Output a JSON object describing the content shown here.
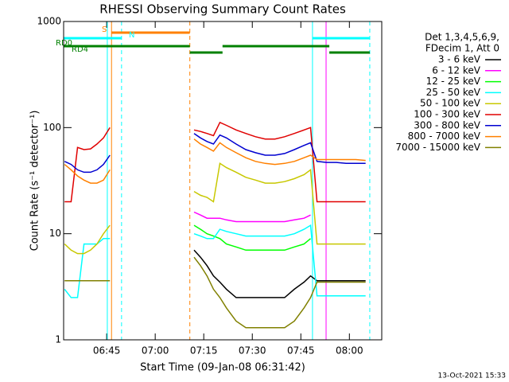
{
  "chart_data": {
    "type": "line",
    "title": "RHESSI Observing Summary Count Rates",
    "x_label": "Start Time (09-Jan-08 06:31:42)",
    "y_label": "Count Rate (s⁻¹ detector⁻¹)",
    "footnote": "13-Oct-2021 15:33",
    "legend_header": [
      "Det 1,3,4,5,6,9,",
      "FDecim 1, Att 0"
    ],
    "log_y": true,
    "xlim": [
      31.7,
      130
    ],
    "ylim": [
      1,
      1000
    ],
    "xticks": [
      {
        "value": 45,
        "label": "06:45"
      },
      {
        "value": 60,
        "label": "07:00"
      },
      {
        "value": 75,
        "label": "07:15"
      },
      {
        "value": 90,
        "label": "07:30"
      },
      {
        "value": 105,
        "label": "07:45"
      },
      {
        "value": 120,
        "label": "08:00"
      }
    ],
    "yticks": [
      1,
      10,
      100,
      1000
    ],
    "x": [
      32,
      34,
      36,
      38,
      40,
      42,
      44,
      46,
      58,
      72,
      74,
      76,
      78,
      80,
      82,
      85,
      88,
      91,
      94,
      97,
      100,
      103,
      106,
      108,
      110,
      113,
      116,
      119,
      122,
      125
    ],
    "series": [
      {
        "name": "3 - 6 keV",
        "color": "#000000",
        "values": [
          null,
          null,
          null,
          null,
          null,
          null,
          null,
          null,
          null,
          7,
          6,
          5,
          4,
          3.5,
          3,
          2.5,
          2.5,
          2.5,
          2.5,
          2.5,
          2.5,
          3,
          3.5,
          4,
          3.6,
          3.6,
          3.6,
          3.6,
          3.6,
          3.6
        ]
      },
      {
        "name": "6 - 12 keV",
        "color": "#ff00ff",
        "values": [
          null,
          null,
          null,
          null,
          null,
          null,
          null,
          null,
          null,
          16,
          15,
          14,
          14,
          14,
          13.5,
          13,
          13,
          13,
          13,
          13,
          13,
          13.5,
          14,
          15,
          null,
          null,
          null,
          null,
          null,
          null
        ]
      },
      {
        "name": "12 - 25 keV",
        "color": "#00ff00",
        "values": [
          null,
          null,
          null,
          null,
          null,
          null,
          null,
          null,
          null,
          12,
          11,
          10,
          9.5,
          9,
          8,
          7.5,
          7,
          7,
          7,
          7,
          7,
          7.5,
          8,
          9,
          null,
          null,
          null,
          null,
          null,
          null
        ]
      },
      {
        "name": "25 - 50 keV",
        "color": "#00ffff",
        "values": [
          3,
          2.5,
          2.5,
          8,
          8,
          8,
          9,
          9,
          null,
          10,
          9.5,
          9,
          9,
          11,
          10.5,
          10,
          9.5,
          9.5,
          9.5,
          9.5,
          9.5,
          10,
          11,
          12,
          2.6,
          2.6,
          2.6,
          2.6,
          2.6,
          2.6
        ]
      },
      {
        "name": "50 - 100 keV",
        "color": "#c8c800",
        "values": [
          8,
          7,
          6.5,
          6.5,
          7,
          8,
          10,
          12,
          null,
          25,
          23,
          22,
          20,
          46,
          42,
          38,
          34,
          32,
          30,
          30,
          31,
          33,
          36,
          40,
          8,
          8,
          8,
          8,
          8,
          8
        ]
      },
      {
        "name": "100 - 300 keV",
        "color": "#e00000",
        "values": [
          20,
          20,
          65,
          62,
          63,
          70,
          80,
          100,
          null,
          95,
          92,
          88,
          84,
          112,
          105,
          95,
          88,
          82,
          78,
          78,
          82,
          88,
          95,
          100,
          20,
          20,
          20,
          20,
          20,
          20
        ]
      },
      {
        "name": "300 - 800 keV",
        "color": "#0000d0",
        "values": [
          48,
          45,
          40,
          38,
          38,
          40,
          45,
          55,
          null,
          88,
          80,
          74,
          70,
          85,
          80,
          70,
          62,
          58,
          55,
          55,
          57,
          62,
          68,
          72,
          48,
          47,
          47,
          46,
          46,
          46
        ]
      },
      {
        "name": "800 - 7000 keV",
        "color": "#ff8000",
        "values": [
          45,
          40,
          35,
          32,
          30,
          30,
          32,
          40,
          null,
          78,
          70,
          65,
          60,
          72,
          65,
          58,
          52,
          48,
          46,
          45,
          46,
          48,
          52,
          55,
          50,
          50,
          50,
          50,
          50,
          49
        ]
      },
      {
        "name": "7000 - 15000 keV",
        "color": "#808000",
        "values": [
          3.6,
          3.6,
          3.6,
          3.6,
          3.6,
          3.6,
          3.6,
          3.6,
          null,
          6,
          5,
          4,
          3,
          2.5,
          2,
          1.5,
          1.3,
          1.3,
          1.3,
          1.3,
          1.3,
          1.5,
          2,
          2.5,
          3.5,
          3.5,
          3.5,
          3.5,
          3.5,
          3.5
        ]
      }
    ],
    "flags": [
      {
        "name": "S",
        "color": "#ff8000",
        "segments": [
          [
            46.5,
            70.7
          ]
        ]
      },
      {
        "name": "N",
        "color": "#00ffff",
        "segments": [
          [
            31.7,
            49.6
          ],
          [
            108.6,
            126.3
          ]
        ]
      },
      {
        "name": "RD0",
        "color": "#008000",
        "segments": [
          [
            31.7,
            70.7
          ],
          [
            80.8,
            113.8
          ]
        ]
      },
      {
        "name": "RD4",
        "color": "#008000",
        "segments": [
          [
            70.7,
            80.8
          ],
          [
            113.8,
            126.3
          ]
        ]
      }
    ],
    "markers": [
      {
        "x": 45.2,
        "color": "#00ffff",
        "dash": false
      },
      {
        "x": 46.5,
        "color": "#ff8000",
        "dash": false
      },
      {
        "x": 49.6,
        "color": "#00ffff",
        "dash": true
      },
      {
        "x": 70.7,
        "color": "#ff8000",
        "dash": true
      },
      {
        "x": 108.6,
        "color": "#00ffff",
        "dash": false
      },
      {
        "x": 112.8,
        "color": "#ff00ff",
        "dash": false
      },
      {
        "x": 126.3,
        "color": "#00ffff",
        "dash": true
      }
    ]
  }
}
